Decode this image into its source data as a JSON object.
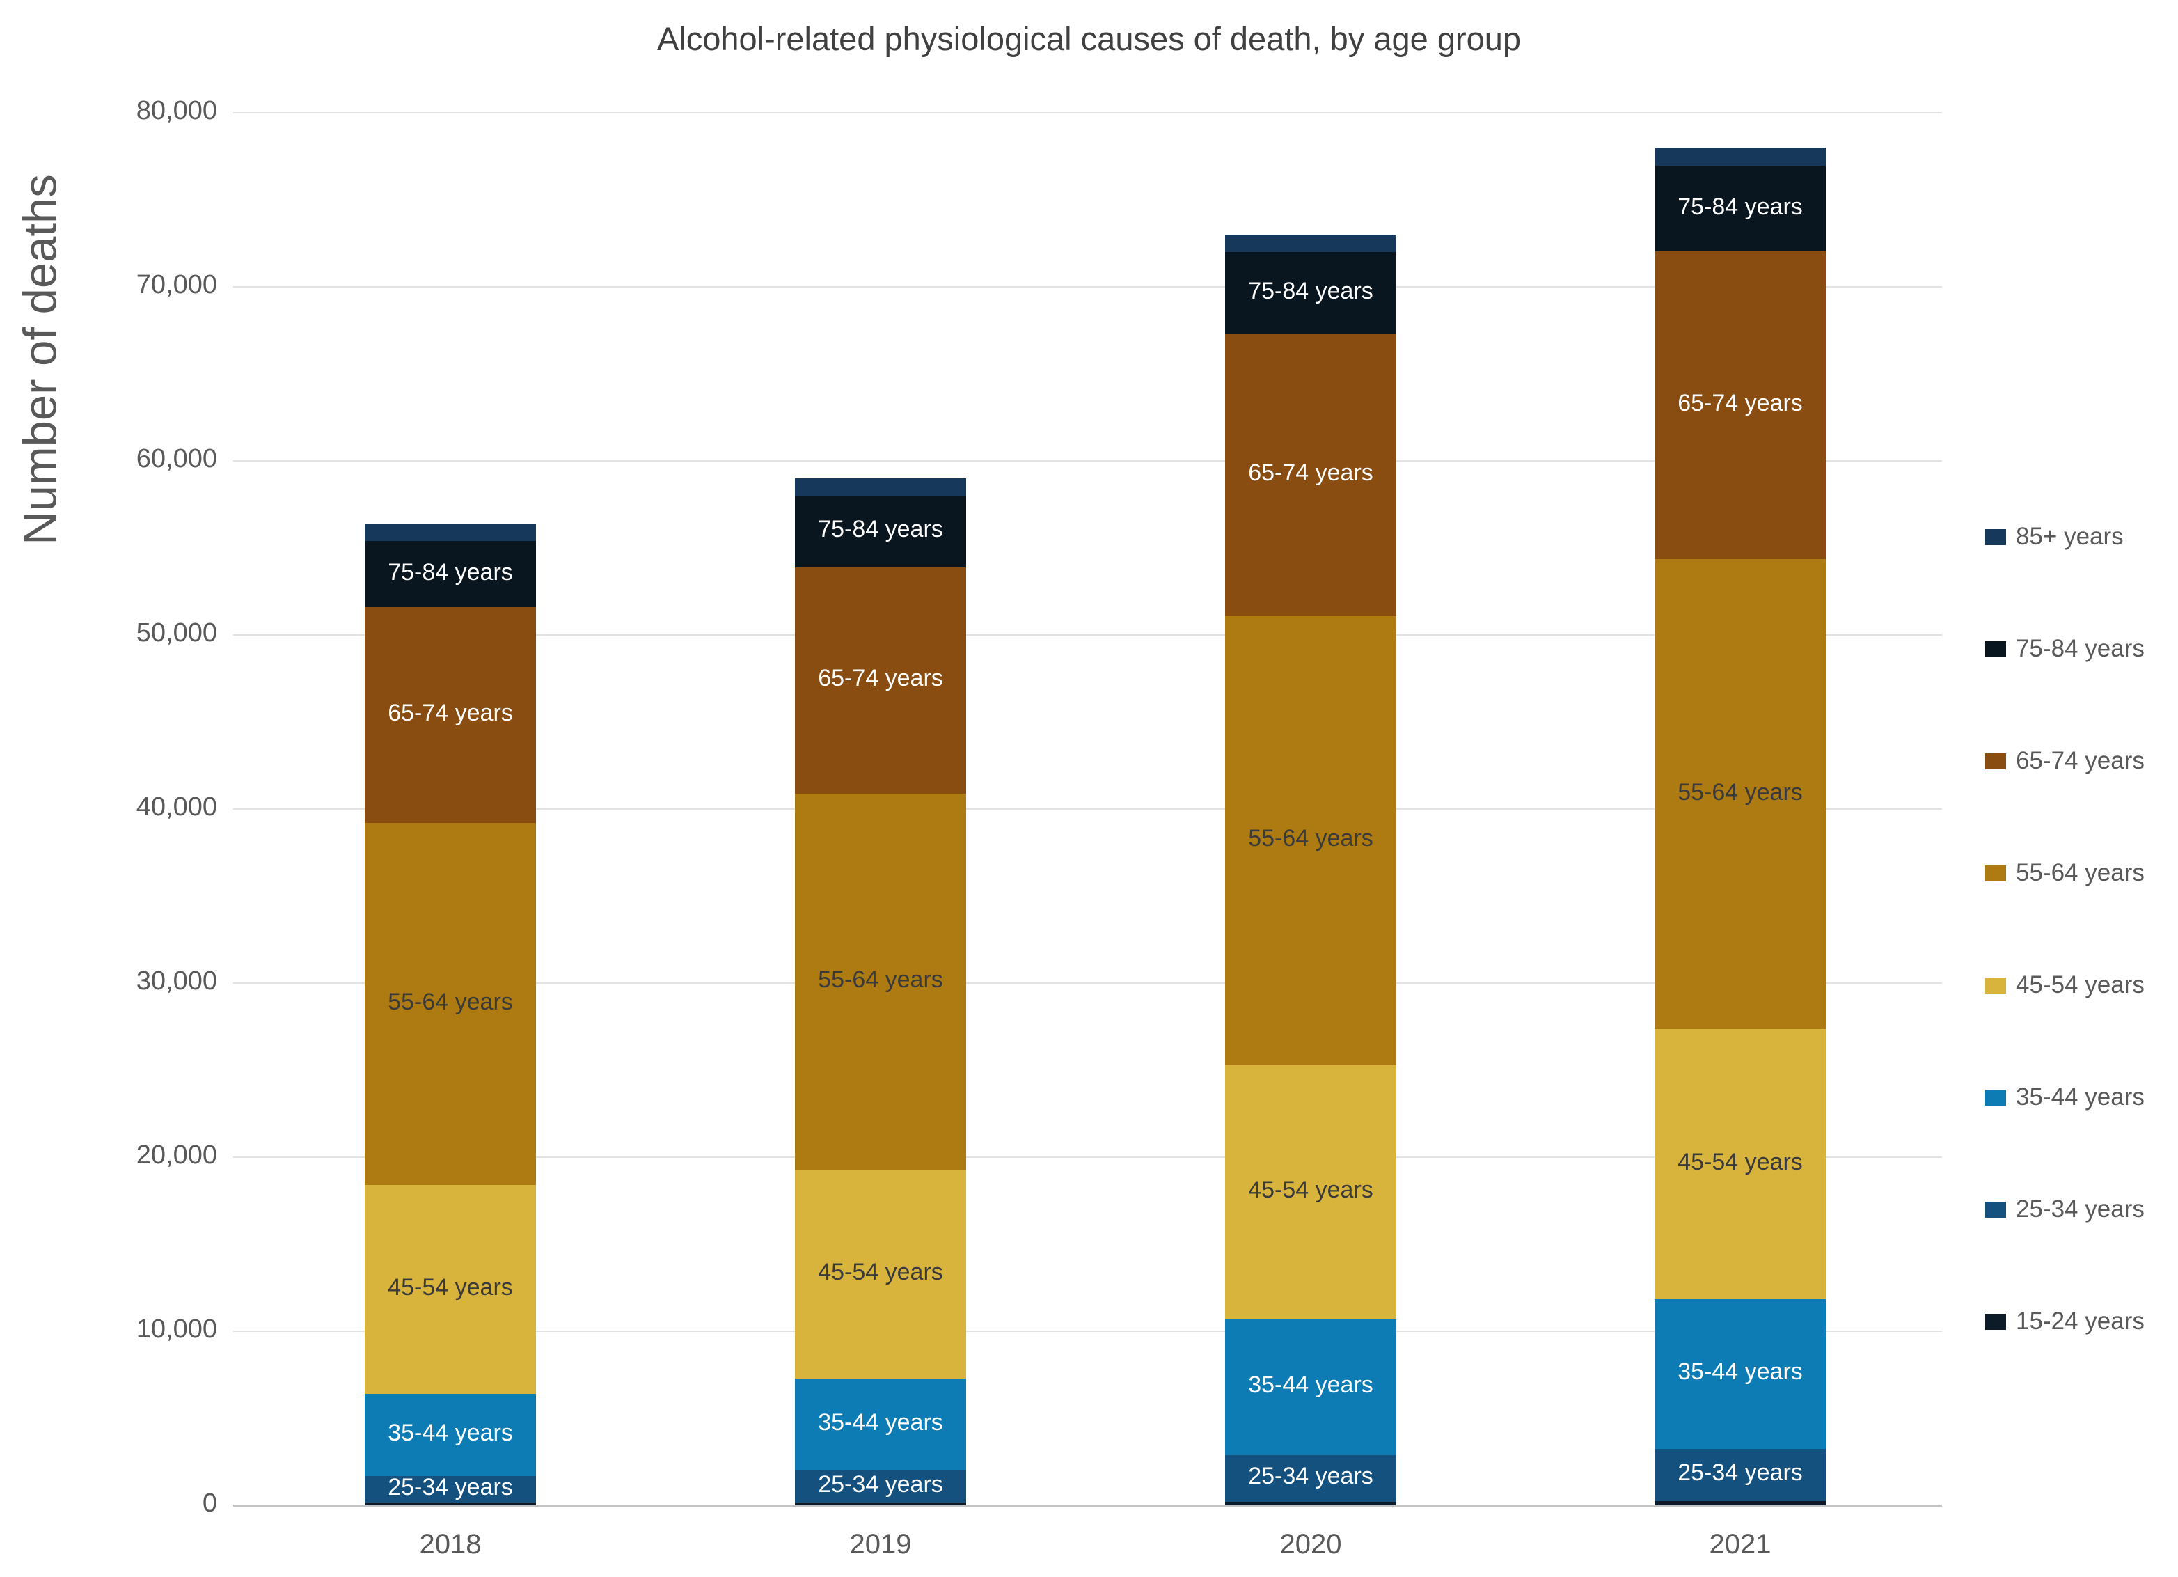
{
  "title": "Alcohol-related physiological causes of death, by age group",
  "y_axis": {
    "label": "Number of deaths",
    "ticks": [
      {
        "value": 0,
        "label": "0"
      },
      {
        "value": 10000,
        "label": "10,000"
      },
      {
        "value": 20000,
        "label": "20,000"
      },
      {
        "value": 30000,
        "label": "30,000"
      },
      {
        "value": 40000,
        "label": "40,000"
      },
      {
        "value": 50000,
        "label": "50,000"
      },
      {
        "value": 60000,
        "label": "60,000"
      },
      {
        "value": 70000,
        "label": "70,000"
      },
      {
        "value": 80000,
        "label": "80,000"
      }
    ]
  },
  "x_axis": {
    "categories": [
      "2018",
      "2019",
      "2020",
      "2021"
    ]
  },
  "legend": [
    {
      "label": "85+ years",
      "color": "#16395b"
    },
    {
      "label": "75-84 years",
      "color": "#0a161f"
    },
    {
      "label": "65-74 years",
      "color": "#8a4d11"
    },
    {
      "label": "55-64 years",
      "color": "#ad7b12"
    },
    {
      "label": "45-54 years",
      "color": "#d9b43c"
    },
    {
      "label": "35-44 years",
      "color": "#0e7cb4"
    },
    {
      "label": "25-34 years",
      "color": "#15517f"
    },
    {
      "label": "15-24 years",
      "color": "#0d1b28"
    }
  ],
  "chart_data": {
    "type": "bar",
    "stacked": true,
    "title": "Alcohol-related physiological causes of death, by age group",
    "xlabel": "",
    "ylabel": "Number of deaths",
    "ylim": [
      0,
      80000
    ],
    "grid": true,
    "legend_position": "right",
    "categories": [
      "2018",
      "2019",
      "2020",
      "2021"
    ],
    "series": [
      {
        "name": "15-24 years",
        "color": "#0d1b28",
        "values": [
          150,
          150,
          200,
          250
        ],
        "show_label": false,
        "label_color": "#ffffff"
      },
      {
        "name": "25-34 years",
        "color": "#15517f",
        "values": [
          1550,
          1850,
          2700,
          3000
        ],
        "show_label": true,
        "label_color": "#ffffff"
      },
      {
        "name": "35-44 years",
        "color": "#0e7cb4",
        "values": [
          4700,
          5300,
          7800,
          8600
        ],
        "show_label": true,
        "label_color": "#ffffff"
      },
      {
        "name": "45-54 years",
        "color": "#d9b43c",
        "values": [
          12000,
          12000,
          14600,
          15500
        ],
        "show_label": true,
        "label_color": "#3a3a3a"
      },
      {
        "name": "55-64 years",
        "color": "#ad7b12",
        "values": [
          20800,
          21600,
          25800,
          27000
        ],
        "show_label": true,
        "label_color": "#3a3a3a"
      },
      {
        "name": "65-74 years",
        "color": "#8a4d11",
        "values": [
          12400,
          13000,
          16200,
          17700
        ],
        "show_label": true,
        "label_color": "#ffffff"
      },
      {
        "name": "75-84 years",
        "color": "#0a161f",
        "values": [
          3800,
          4100,
          4700,
          4900
        ],
        "show_label": true,
        "label_color": "#ffffff"
      },
      {
        "name": "85+ years",
        "color": "#16395b",
        "values": [
          1000,
          1000,
          1000,
          1050
        ],
        "show_label": false,
        "label_color": "#ffffff"
      }
    ],
    "totals": [
      56400,
      59000,
      73000,
      78000
    ]
  }
}
